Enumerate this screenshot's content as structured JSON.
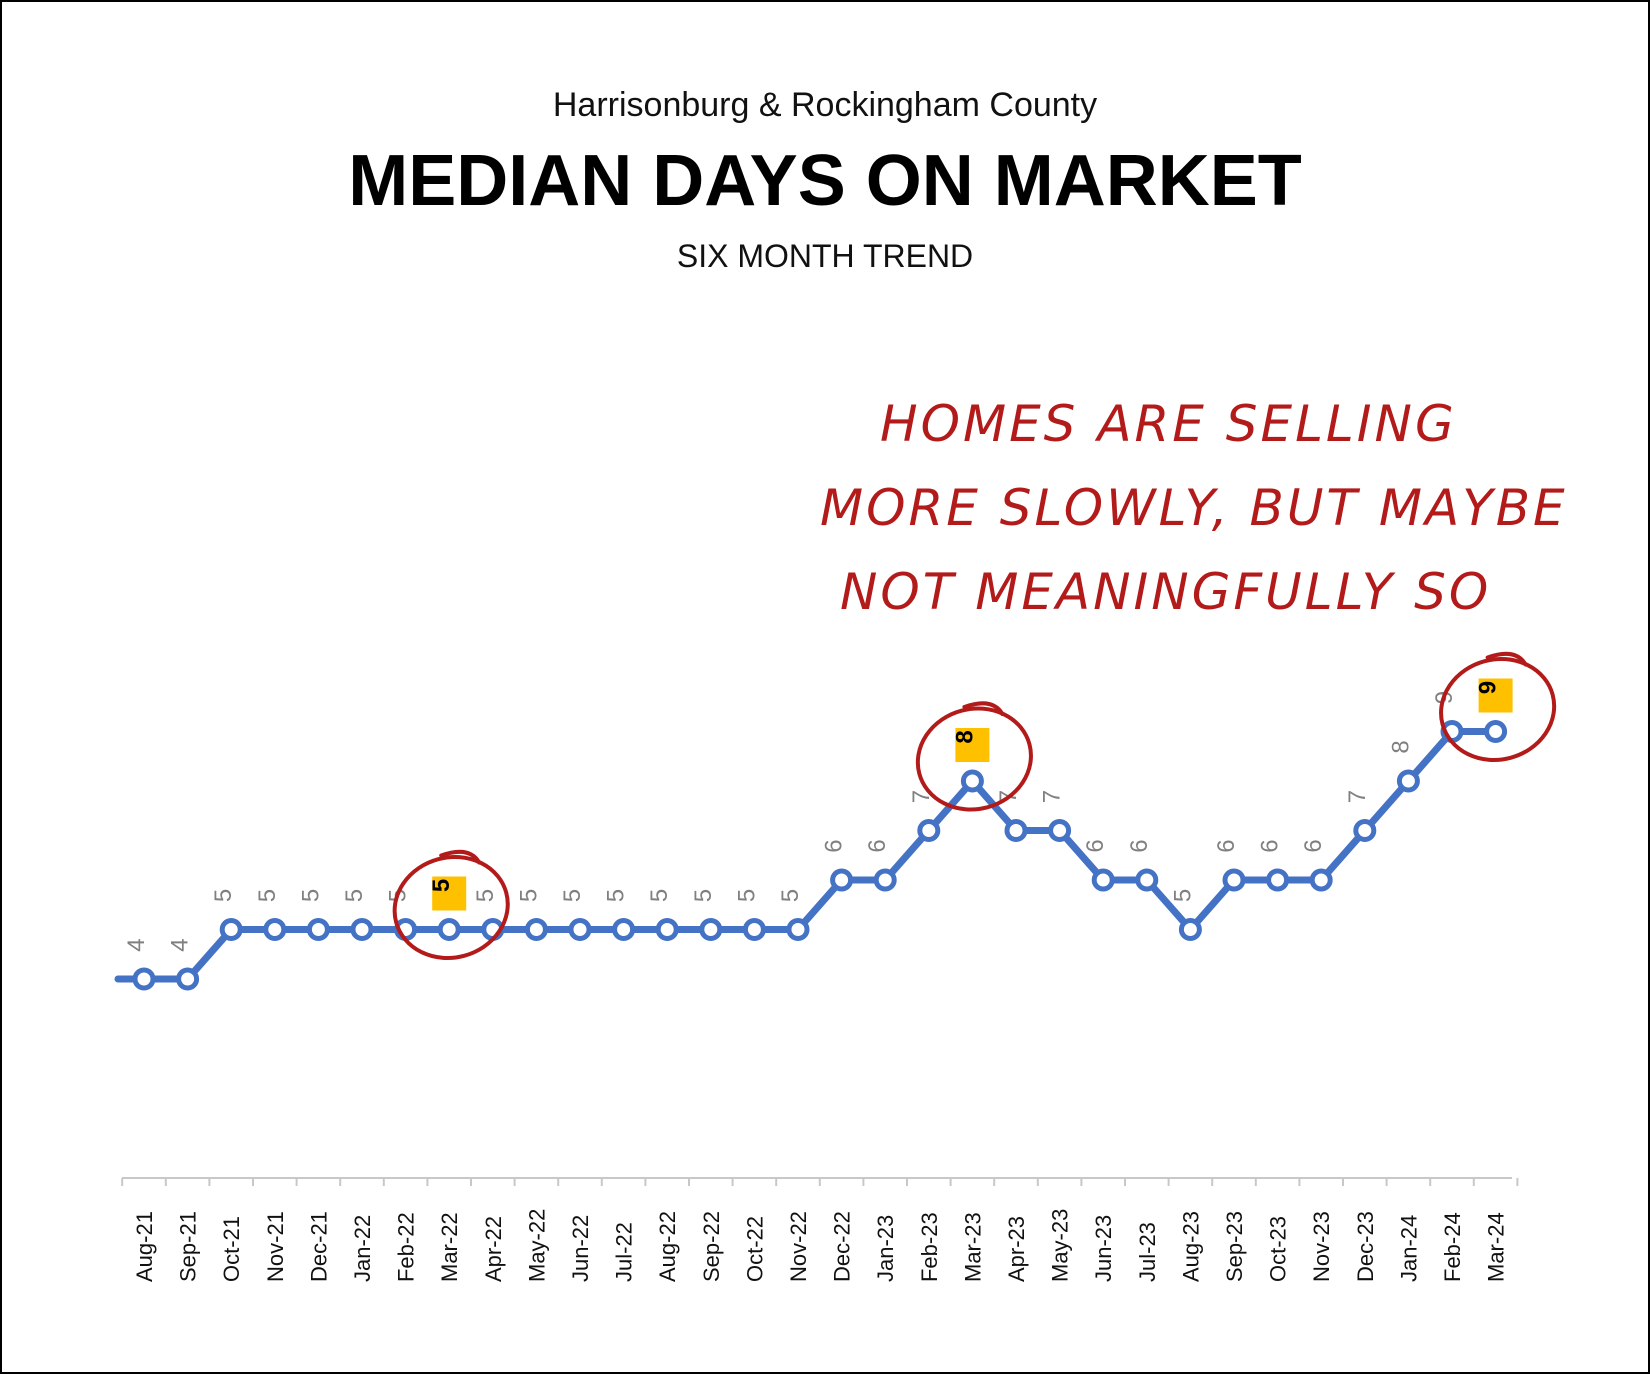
{
  "title_top": "Harrisonburg & Rockingham County",
  "title_main": "MEDIAN DAYS ON MARKET",
  "title_sub": "SIX MONTH TREND",
  "annotation": {
    "line1": "HOMES ARE SELLING",
    "line2": "MORE SLOWLY, BUT MAYBE",
    "line3": "NOT MEANINGFULLY SO",
    "color": "#b31b1b"
  },
  "chart_data": {
    "type": "line",
    "title": "MEDIAN DAYS ON MARKET",
    "subtitle": "SIX MONTH TREND",
    "categories": [
      "Aug-21",
      "Sep-21",
      "Oct-21",
      "Nov-21",
      "Dec-21",
      "Jan-22",
      "Feb-22",
      "Mar-22",
      "Apr-22",
      "May-22",
      "Jun-22",
      "Jul-22",
      "Aug-22",
      "Sep-22",
      "Oct-22",
      "Nov-22",
      "Dec-22",
      "Jan-23",
      "Feb-23",
      "Mar-23",
      "Apr-23",
      "May-23",
      "Jun-23",
      "Jul-23",
      "Aug-23",
      "Sep-23",
      "Oct-23",
      "Nov-23",
      "Dec-23",
      "Jan-24",
      "Feb-24",
      "Mar-24"
    ],
    "series": [
      {
        "values": [
          4,
          4,
          5,
          5,
          5,
          5,
          5,
          5,
          5,
          5,
          5,
          5,
          5,
          5,
          5,
          5,
          6,
          6,
          7,
          8,
          7,
          7,
          6,
          6,
          5,
          6,
          6,
          6,
          7,
          8,
          9,
          9
        ],
        "color": "#4472c4"
      }
    ],
    "highlighted_points": [
      "Mar-22",
      "Mar-23",
      "Mar-24"
    ],
    "highlight_color": "#ffc000",
    "label_color": "#808080",
    "grid": false
  }
}
